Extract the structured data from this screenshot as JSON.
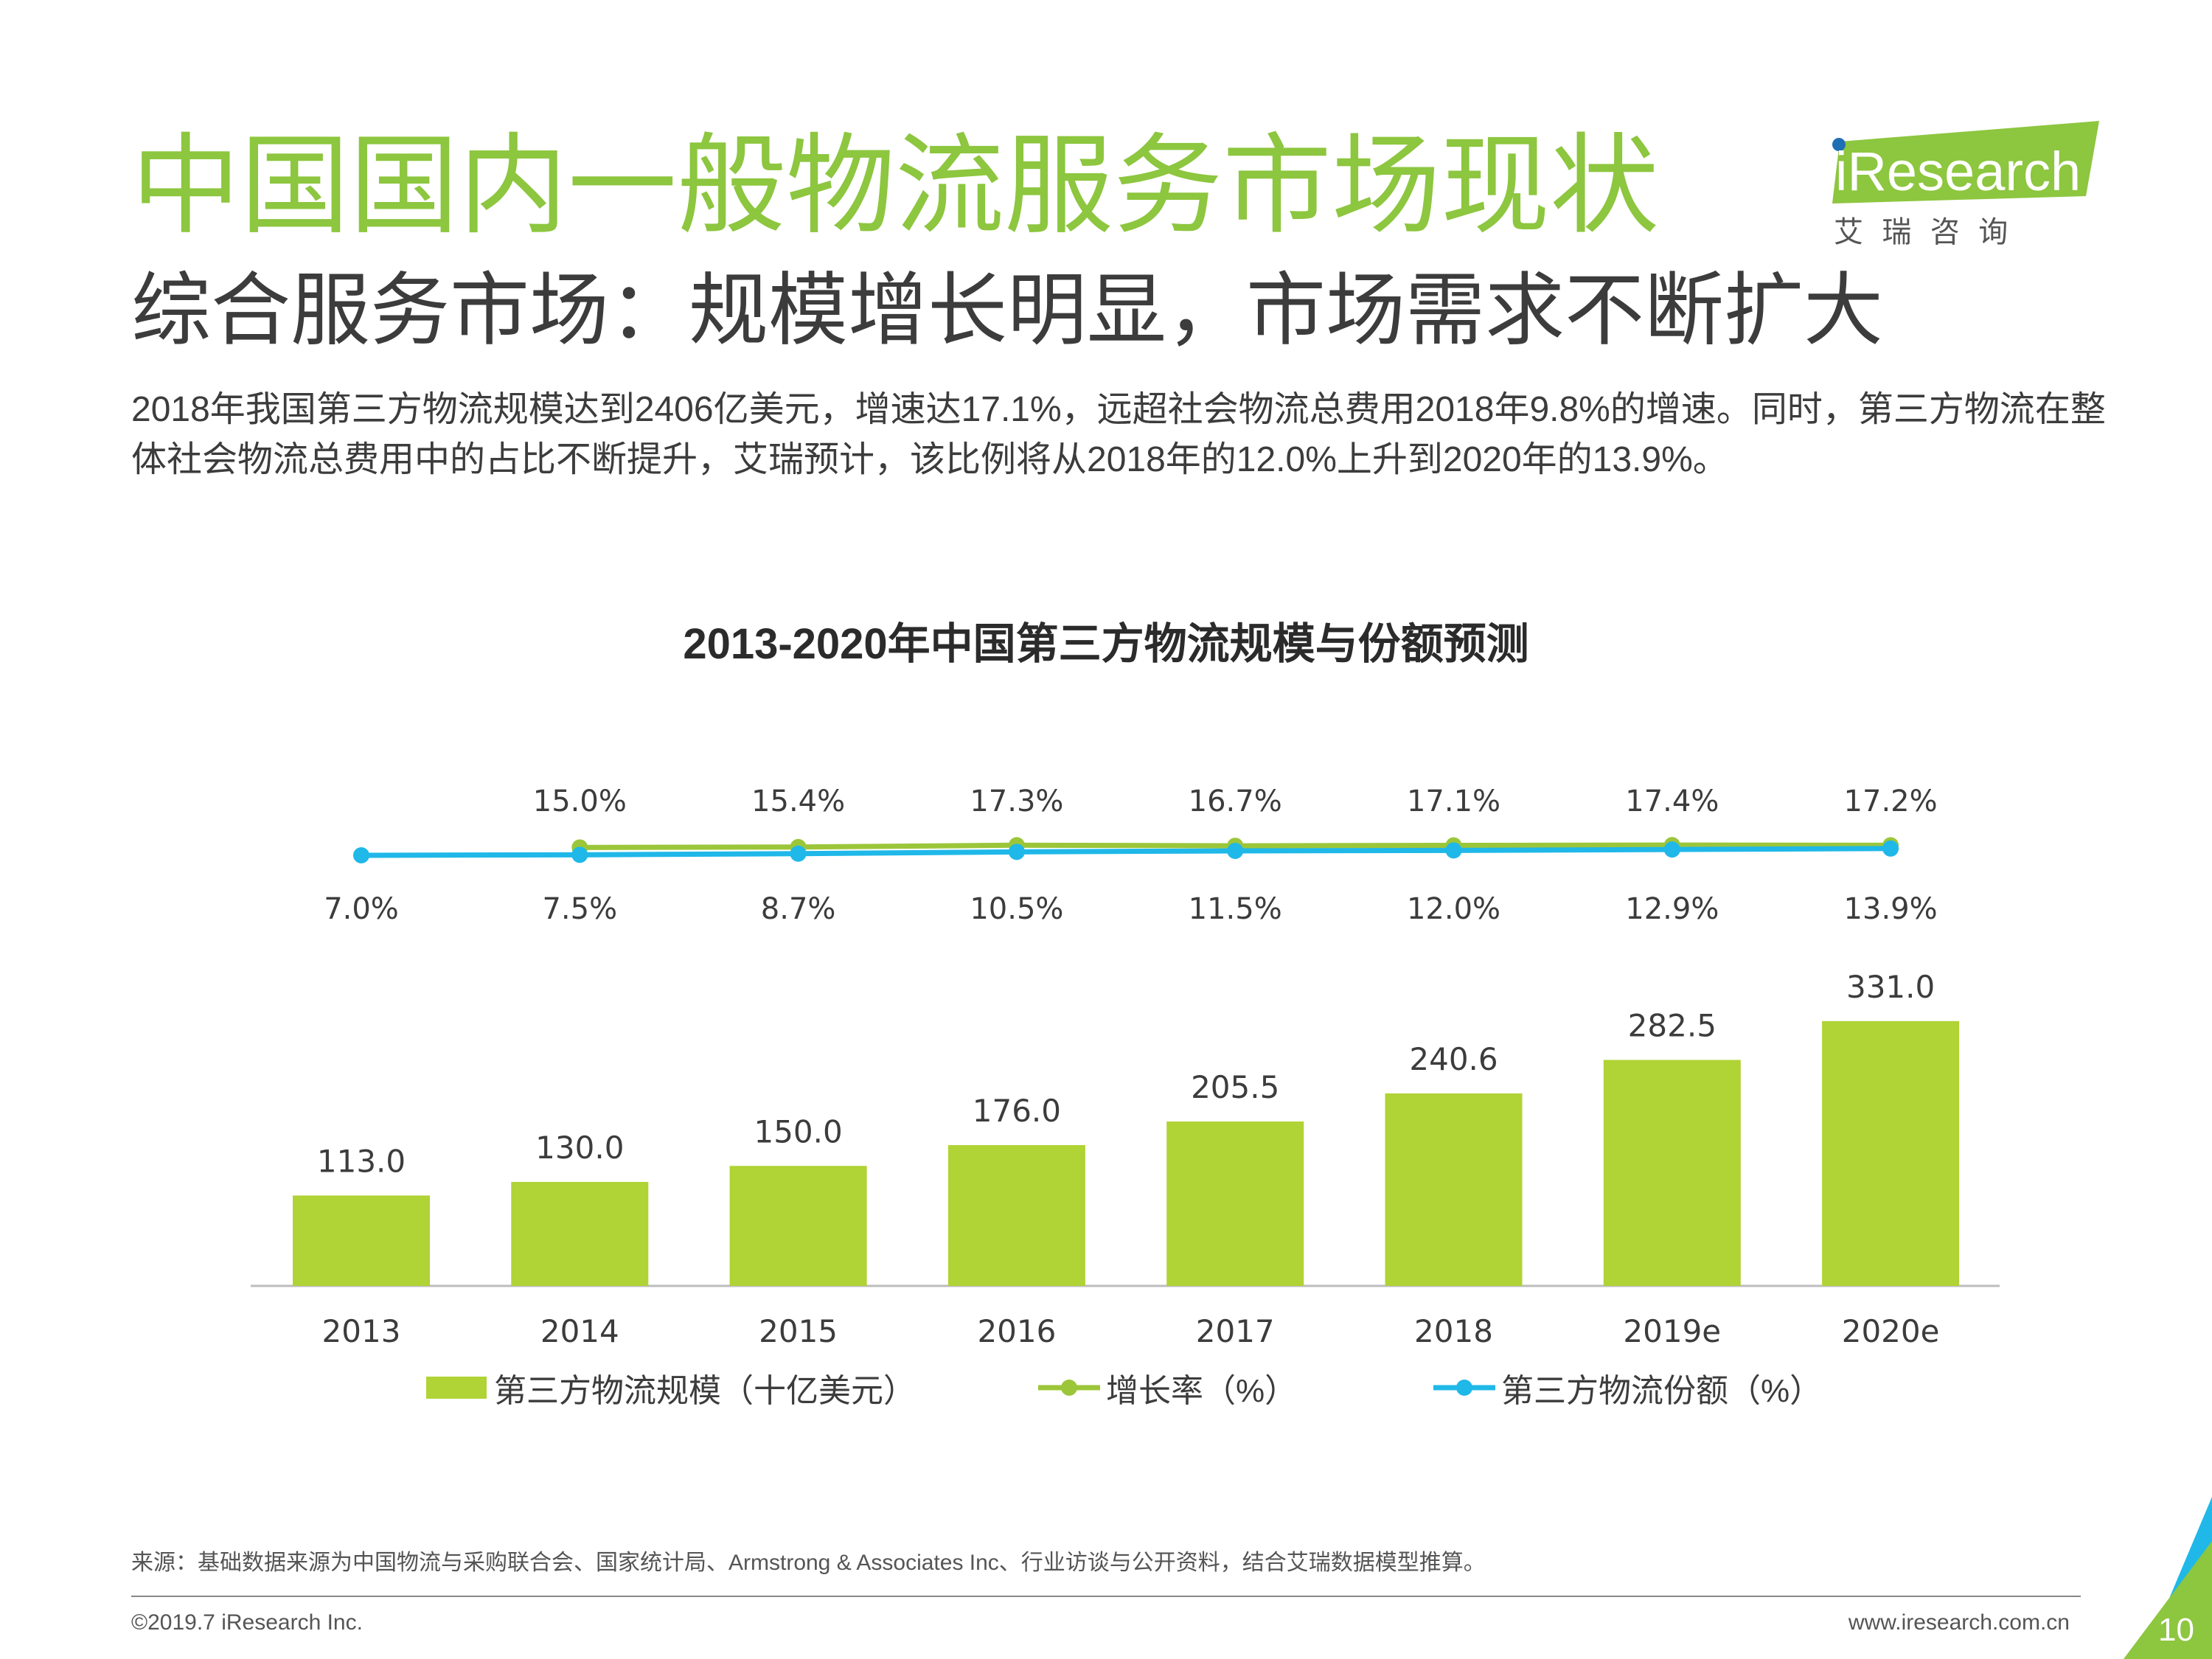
{
  "page": {
    "title": "中国国内一般物流服务市场现状",
    "subtitle": "综合服务市场：规模增长明显，市场需求不断扩大",
    "summary": "2018年我国第三方物流规模达到2406亿美元，增速达17.1%，远超社会物流总费用2018年9.8%的增速。同时，第三方物流在整体社会物流总费用中的占比不断提升，艾瑞预计，该比例将从2018年的12.0%上升到2020年的13.9%。",
    "source": "来源：基础数据来源为中国物流与采购联合会、国家统计局、Armstrong & Associates Inc、行业访谈与公开资料，结合艾瑞数据模型推算。",
    "copyright": "©2019.7 iResearch Inc.",
    "website": "www.iresearch.com.cn",
    "page_number": "10"
  },
  "logo": {
    "brand": "iResearch",
    "cn_name": "艾  瑞  咨  询"
  },
  "colors": {
    "accent_green": "#8dc63f",
    "bar_green": "#b0d335",
    "line_green": "#9cc63a",
    "line_blue": "#1fb8e8",
    "text_dark": "#3c3c3c"
  },
  "chart_data": {
    "type": "bar",
    "title": "2013-2020年中国第三方物流规模与份额预测",
    "categories": [
      "2013",
      "2014",
      "2015",
      "2016",
      "2017",
      "2018",
      "2019e",
      "2020e"
    ],
    "series": [
      {
        "name": "第三方物流规模（十亿美元）",
        "type": "bar",
        "values": [
          113.0,
          130.0,
          150.0,
          176.0,
          205.5,
          240.6,
          282.5,
          331.0
        ],
        "labels": [
          "113.0",
          "130.0",
          "150.0",
          "176.0",
          "205.5",
          "240.6",
          "282.5",
          "331.0"
        ]
      },
      {
        "name": "增长率（%）",
        "type": "line",
        "values": [
          null,
          15.0,
          15.4,
          17.3,
          16.7,
          17.1,
          17.4,
          17.2
        ],
        "labels": [
          "",
          "15.0%",
          "15.4%",
          "17.3%",
          "16.7%",
          "17.1%",
          "17.4%",
          "17.2%"
        ]
      },
      {
        "name": "第三方物流份额（%）",
        "type": "line",
        "values": [
          7.0,
          7.5,
          8.7,
          10.5,
          11.5,
          12.0,
          12.9,
          13.9
        ],
        "labels": [
          "7.0%",
          "7.5%",
          "8.7%",
          "10.5%",
          "11.5%",
          "12.0%",
          "12.9%",
          "13.9%"
        ]
      }
    ],
    "xlabel": "",
    "ylabel": "",
    "legend_position": "bottom"
  }
}
